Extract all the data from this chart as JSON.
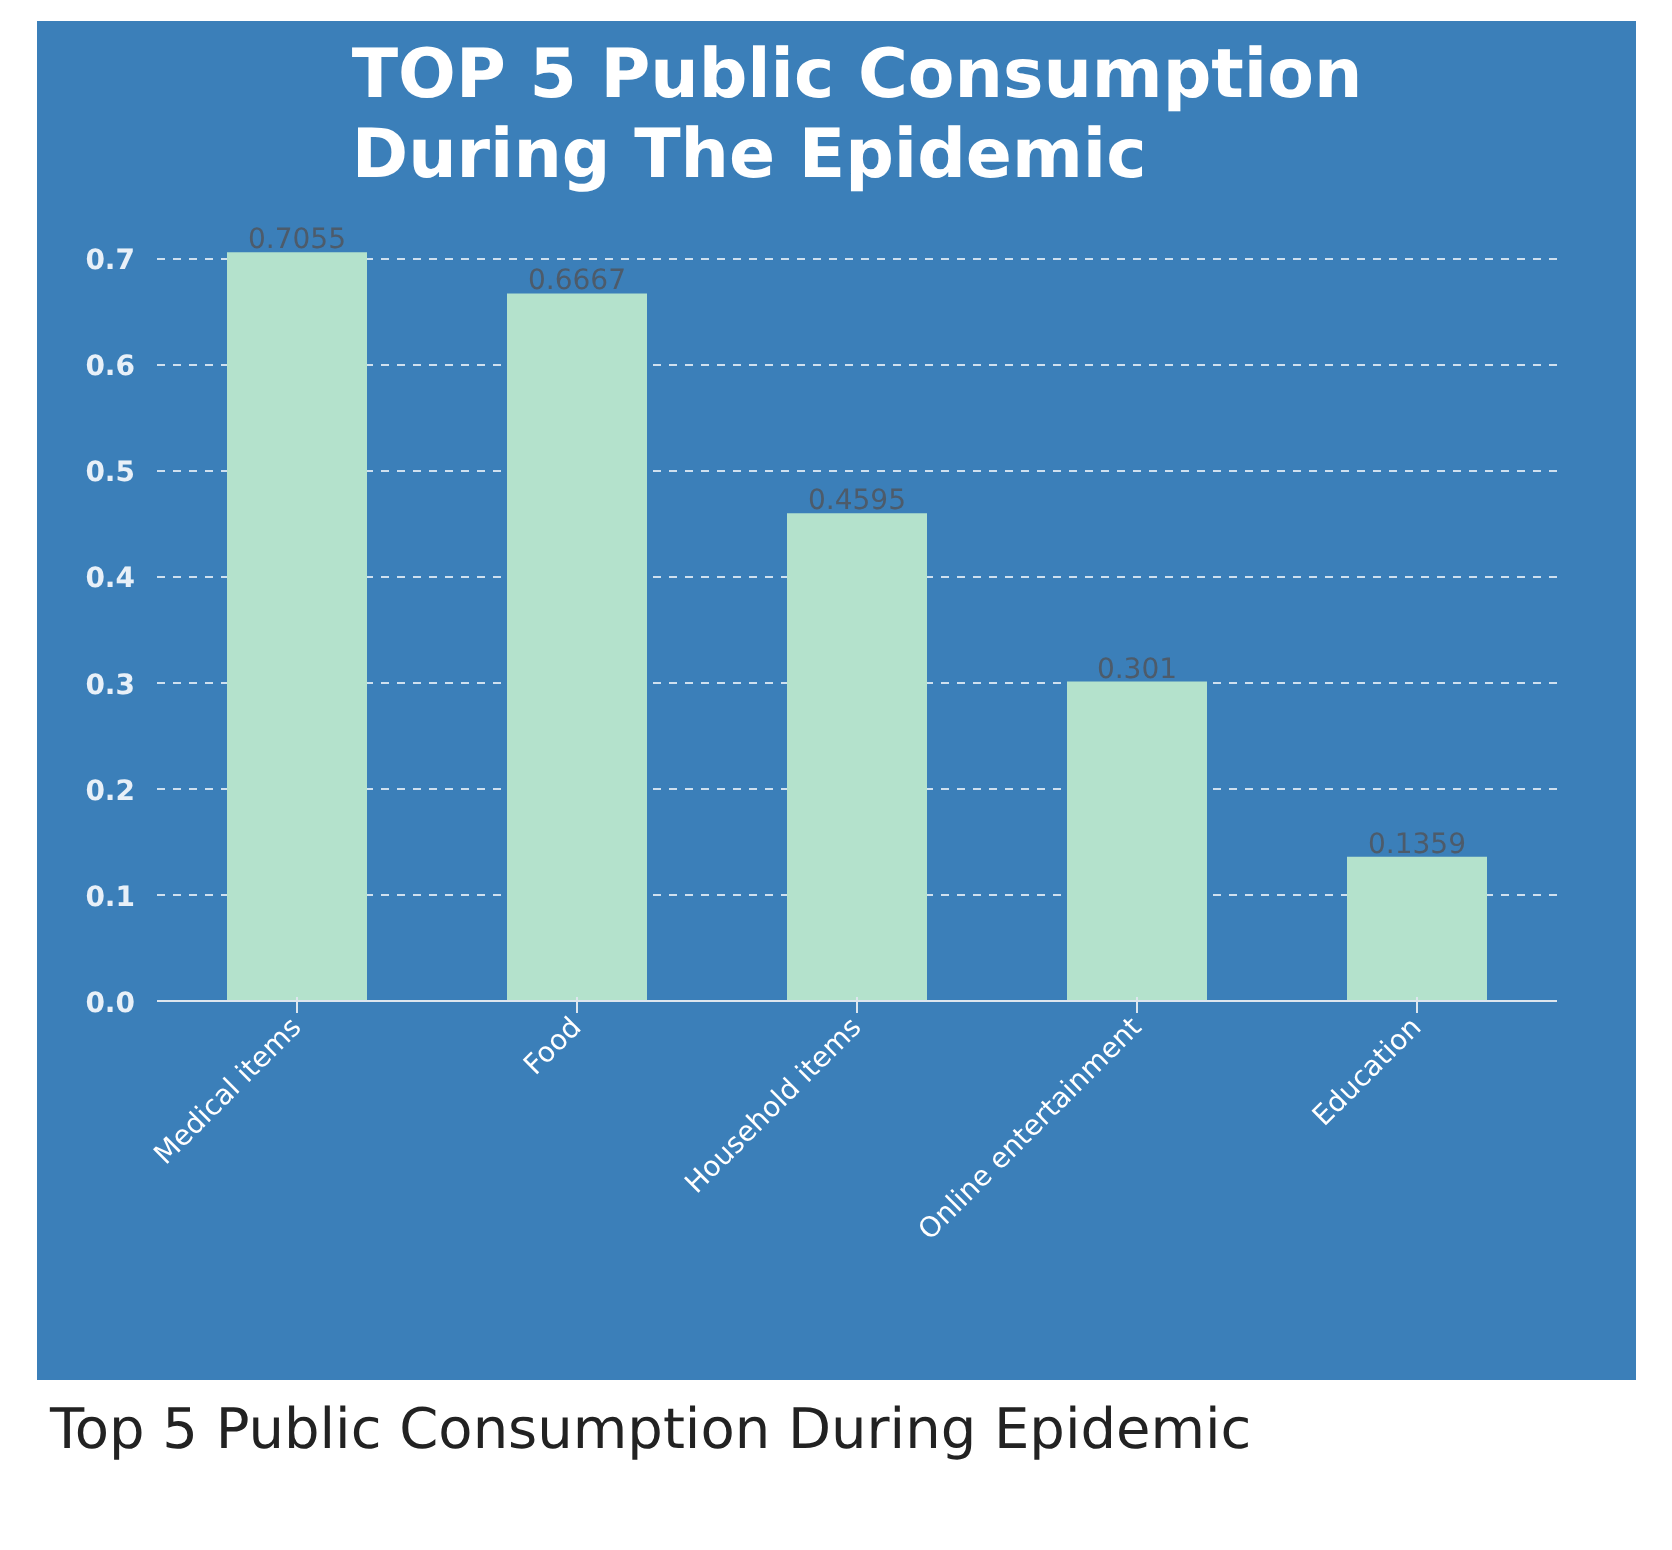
{
  "chart_data": {
    "type": "bar",
    "title": "TOP 5 Public Consumption During The Epidemic",
    "categories": [
      "Medical items",
      "Food",
      "Household items",
      "Online entertainment",
      "Education"
    ],
    "values": [
      0.7055,
      0.6667,
      0.4595,
      0.301,
      0.1359
    ],
    "color": "#b4e2cc",
    "ylim": [
      0,
      0.75
    ],
    "yticks": [
      {
        "value": 0,
        "label": "0.0"
      },
      0.1,
      0.2,
      0.3,
      0.4,
      0.5,
      0.6,
      0.7
    ],
    "grid": "y",
    "data_labels": true,
    "annotations": [
      "Top 5 Public Consumption During Epidemic"
    ]
  }
}
